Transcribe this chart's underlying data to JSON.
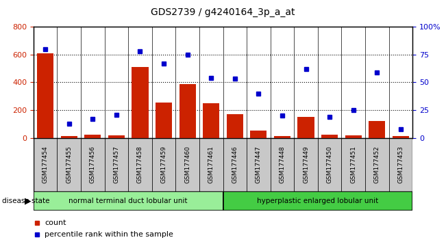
{
  "title": "GDS2739 / g4240164_3p_a_at",
  "samples": [
    "GSM177454",
    "GSM177455",
    "GSM177456",
    "GSM177457",
    "GSM177458",
    "GSM177459",
    "GSM177460",
    "GSM177461",
    "GSM177446",
    "GSM177447",
    "GSM177448",
    "GSM177449",
    "GSM177450",
    "GSM177451",
    "GSM177452",
    "GSM177453"
  ],
  "counts": [
    610,
    15,
    25,
    20,
    510,
    255,
    385,
    250,
    170,
    55,
    15,
    150,
    25,
    20,
    120,
    15
  ],
  "percentiles": [
    80,
    13,
    17,
    21,
    78,
    67,
    75,
    54,
    53,
    40,
    20,
    62,
    19,
    25,
    59,
    8
  ],
  "group1_label": "normal terminal duct lobular unit",
  "group2_label": "hyperplastic enlarged lobular unit",
  "group1_count": 8,
  "group2_count": 8,
  "ylim_left": [
    0,
    800
  ],
  "ylim_right": [
    0,
    100
  ],
  "yticks_left": [
    0,
    200,
    400,
    600,
    800
  ],
  "yticks_right": [
    0,
    25,
    50,
    75,
    100
  ],
  "bar_color": "#cc2200",
  "dot_color": "#0000cc",
  "tick_area_color": "#c8c8c8",
  "group1_color": "#99ee99",
  "group2_color": "#44cc44",
  "legend_count_label": "count",
  "legend_pct_label": "percentile rank within the sample",
  "bar_width": 0.7
}
